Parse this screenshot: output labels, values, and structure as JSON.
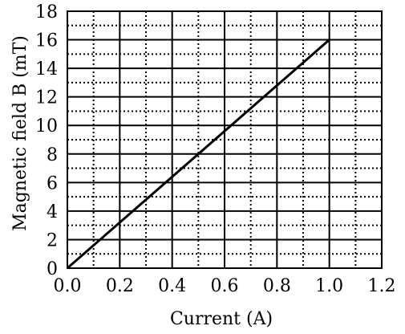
{
  "chart_data": {
    "type": "line",
    "title": "",
    "xlabel": "Current (A)",
    "ylabel": "Magnetic field B (mT)",
    "xlim": [
      0,
      1.2
    ],
    "ylim": [
      0,
      18
    ],
    "x_ticks": [
      "0.0",
      "0.2",
      "0.4",
      "0.6",
      "0.8",
      "1.0",
      "1.2"
    ],
    "y_ticks": [
      "0",
      "2",
      "4",
      "6",
      "8",
      "10",
      "12",
      "14",
      "16",
      "18"
    ],
    "grid": {
      "major": true,
      "major_style": "solid",
      "minor": true,
      "minor_style": "dotted",
      "x_minor_step": 0.1,
      "y_minor_step": 1
    },
    "series": [
      {
        "x": [
          0.0,
          1.0
        ],
        "y": [
          0,
          16
        ]
      }
    ],
    "colors": {
      "line": "#000000",
      "grid": "#000000",
      "background": "#ffffff"
    }
  }
}
